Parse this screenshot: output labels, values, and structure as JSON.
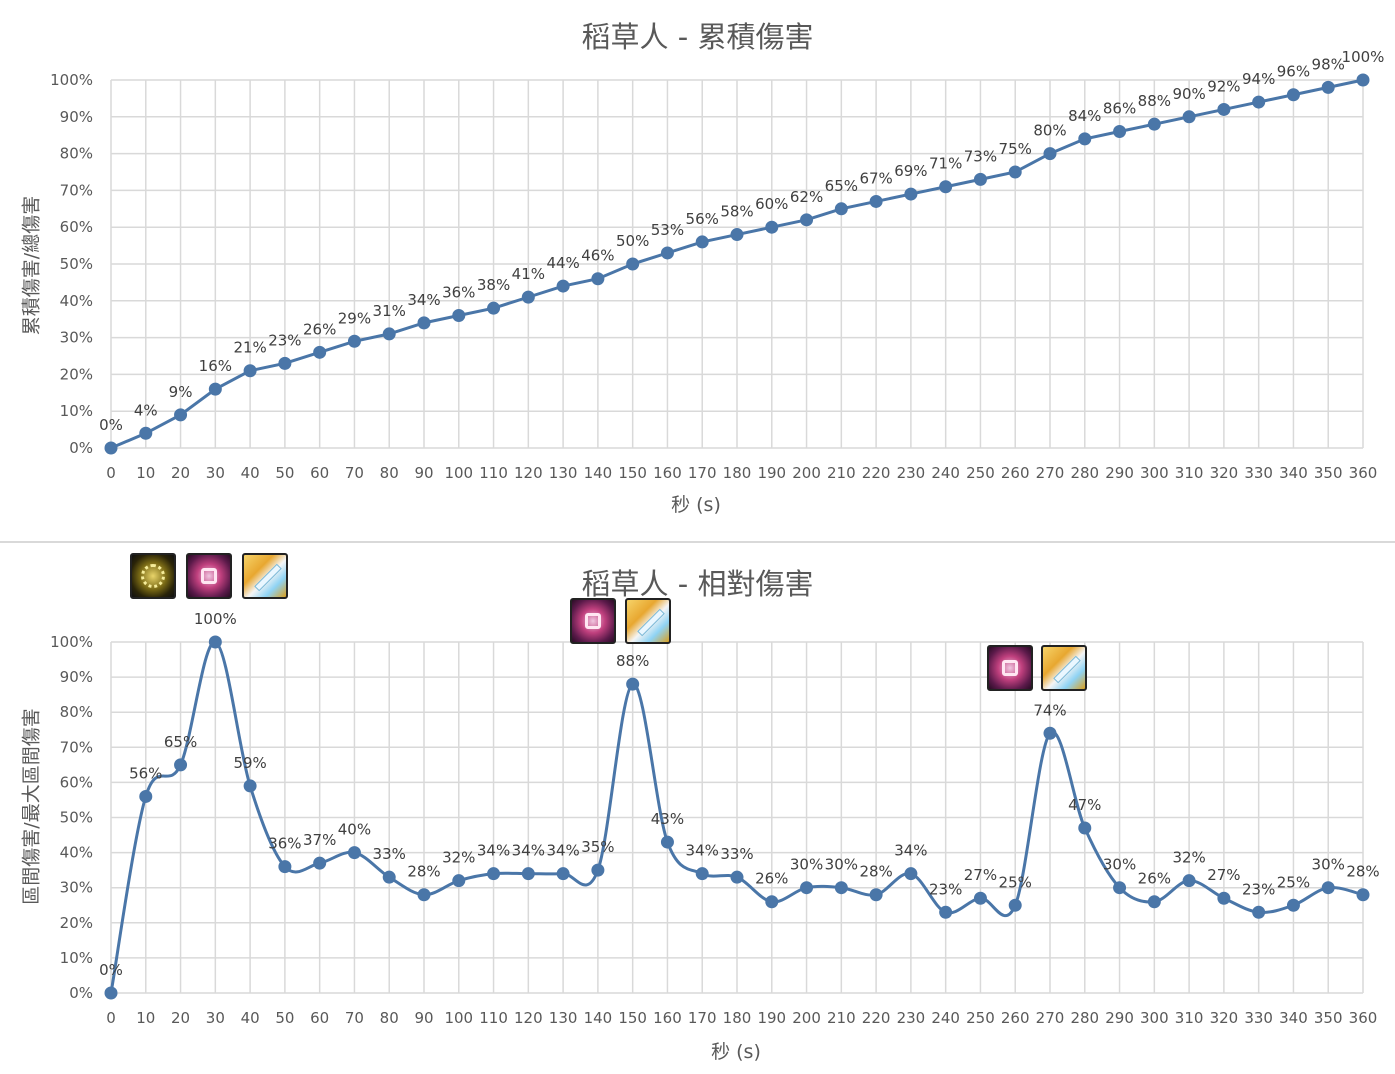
{
  "colors": {
    "series": "#4a76a8",
    "grid": "#d9d9d9",
    "text": "#595959"
  },
  "chart_data": [
    {
      "type": "line",
      "title": "稻草人 - 累積傷害",
      "xlabel": "秒 (s)",
      "ylabel": "累積傷害/總傷害",
      "x": [
        0,
        10,
        20,
        30,
        40,
        50,
        60,
        70,
        80,
        90,
        100,
        110,
        120,
        130,
        140,
        150,
        160,
        170,
        180,
        190,
        200,
        210,
        220,
        230,
        240,
        250,
        260,
        270,
        280,
        290,
        300,
        310,
        320,
        330,
        340,
        350,
        360
      ],
      "y_ticks": [
        "0%",
        "10%",
        "20%",
        "30%",
        "40%",
        "50%",
        "60%",
        "70%",
        "80%",
        "90%",
        "100%"
      ],
      "ylim": [
        0,
        100
      ],
      "grid": true,
      "series": [
        {
          "values": [
            0,
            4,
            9,
            16,
            21,
            23,
            26,
            29,
            31,
            34,
            36,
            38,
            41,
            44,
            46,
            50,
            53,
            56,
            58,
            60,
            62,
            65,
            67,
            69,
            71,
            73,
            75,
            80,
            84,
            86,
            88,
            90,
            92,
            94,
            96,
            98,
            100
          ],
          "labels": [
            "0%",
            "4%",
            "9%",
            "16%",
            "21%",
            "23%",
            "26%",
            "29%",
            "31%",
            "34%",
            "36%",
            "38%",
            "41%",
            "44%",
            "46%",
            "50%",
            "53%",
            "56%",
            "58%",
            "60%",
            "62%",
            "65%",
            "67%",
            "69%",
            "71%",
            "73%",
            "75%",
            "80%",
            "84%",
            "86%",
            "88%",
            "90%",
            "92%",
            "94%",
            "96%",
            "98%",
            "100%"
          ]
        }
      ]
    },
    {
      "type": "line",
      "title": "稻草人 - 相對傷害",
      "xlabel": "秒 (s)",
      "ylabel": "區間傷害/最大區間傷害",
      "x": [
        0,
        10,
        20,
        30,
        40,
        50,
        60,
        70,
        80,
        90,
        100,
        110,
        120,
        130,
        140,
        150,
        160,
        170,
        180,
        190,
        200,
        210,
        220,
        230,
        240,
        250,
        260,
        270,
        280,
        290,
        300,
        310,
        320,
        330,
        340,
        350,
        360
      ],
      "y_ticks": [
        "0%",
        "10%",
        "20%",
        "30%",
        "40%",
        "50%",
        "60%",
        "70%",
        "80%",
        "90%",
        "100%"
      ],
      "ylim": [
        0,
        100
      ],
      "grid": true,
      "series": [
        {
          "values": [
            0,
            56,
            65,
            100,
            59,
            36,
            37,
            40,
            33,
            28,
            32,
            34,
            34,
            34,
            35,
            88,
            43,
            34,
            33,
            26,
            30,
            30,
            28,
            34,
            23,
            27,
            25,
            74,
            47,
            30,
            26,
            32,
            27,
            23,
            25,
            30,
            28
          ],
          "labels": [
            "0%",
            "56%",
            "65%",
            "100%",
            "59%",
            "36%",
            "37%",
            "40%",
            "33%",
            "28%",
            "32%",
            "34%",
            "34%",
            "34%",
            "35%",
            "88%",
            "43%",
            "34%",
            "33%",
            "26%",
            "30%",
            "30%",
            "28%",
            "34%",
            "23%",
            "27%",
            "25%",
            "74%",
            "47%",
            "30%",
            "26%",
            "32%",
            "27%",
            "23%",
            "25%",
            "30%",
            "28%"
          ]
        }
      ],
      "annotations": [
        {
          "at_x": 30,
          "icons": [
            "gold-skill-icon",
            "pink-skill-icon",
            "sword-skill-icon"
          ]
        },
        {
          "at_x": 150,
          "icons": [
            "pink-skill-icon",
            "sword-skill-icon"
          ]
        },
        {
          "at_x": 270,
          "icons": [
            "pink-skill-icon",
            "sword-skill-icon"
          ]
        }
      ]
    }
  ]
}
